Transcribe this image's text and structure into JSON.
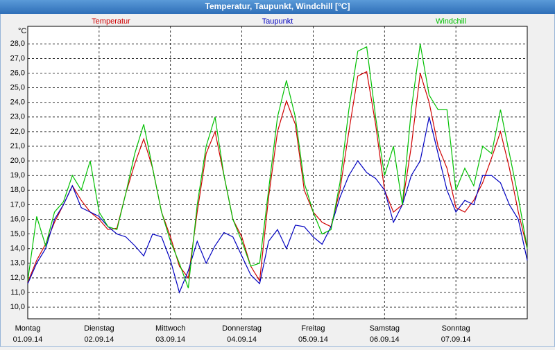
{
  "chart_data": {
    "type": "line",
    "title": "Temperatur, Taupunkt, Windchill [°C]",
    "y_unit": "°C",
    "x": [
      0,
      0.125,
      0.25,
      0.375,
      0.5,
      0.625,
      0.75,
      0.875,
      1,
      1.125,
      1.25,
      1.375,
      1.5,
      1.625,
      1.75,
      1.875,
      2,
      2.125,
      2.25,
      2.375,
      2.5,
      2.625,
      2.75,
      2.875,
      3,
      3.125,
      3.25,
      3.375,
      3.5,
      3.625,
      3.75,
      3.875,
      4,
      4.125,
      4.25,
      4.375,
      4.5,
      4.625,
      4.75,
      4.875,
      5,
      5.125,
      5.25,
      5.375,
      5.5,
      5.625,
      5.75,
      5.875,
      6,
      6.125,
      6.25,
      6.375,
      6.5,
      6.625,
      6.75,
      6.875,
      7
    ],
    "xlim": [
      0,
      7
    ],
    "xticks": [
      {
        "value": 0,
        "label": "Montag",
        "date": "01.09.14"
      },
      {
        "value": 1,
        "label": "Dienstag",
        "date": "02.09.14"
      },
      {
        "value": 2,
        "label": "Mittwoch",
        "date": "03.09.14"
      },
      {
        "value": 3,
        "label": "Donnerstag",
        "date": "04.09.14"
      },
      {
        "value": 4,
        "label": "Freitag",
        "date": "05.09.14"
      },
      {
        "value": 5,
        "label": "Samstag",
        "date": "06.09.14"
      },
      {
        "value": 6,
        "label": "Sonntag",
        "date": "07.09.14"
      }
    ],
    "ylim": [
      9.2,
      29.2
    ],
    "yticks": [
      {
        "value": 10,
        "label": "10,0"
      },
      {
        "value": 11,
        "label": "11,0"
      },
      {
        "value": 12,
        "label": "12,0"
      },
      {
        "value": 13,
        "label": "13,0"
      },
      {
        "value": 14,
        "label": "14,0"
      },
      {
        "value": 15,
        "label": "15,0"
      },
      {
        "value": 16,
        "label": "16,0"
      },
      {
        "value": 17,
        "label": "17,0"
      },
      {
        "value": 18,
        "label": "18,0"
      },
      {
        "value": 19,
        "label": "19,0"
      },
      {
        "value": 20,
        "label": "20,0"
      },
      {
        "value": 21,
        "label": "21,0"
      },
      {
        "value": 22,
        "label": "22,0"
      },
      {
        "value": 23,
        "label": "23,0"
      },
      {
        "value": 24,
        "label": "24,0"
      },
      {
        "value": 25,
        "label": "25,0"
      },
      {
        "value": 26,
        "label": "26,0"
      },
      {
        "value": 27,
        "label": "27,0"
      },
      {
        "value": 28,
        "label": "28,0"
      }
    ],
    "grid": true,
    "series": [
      {
        "name": "Temperatur",
        "color": "#d00000",
        "values": [
          11.7,
          13.2,
          14.3,
          15.8,
          17.0,
          18.3,
          17.3,
          16.5,
          16.0,
          15.3,
          15.4,
          17.8,
          19.8,
          21.5,
          19.5,
          16.5,
          14.8,
          12.8,
          12.0,
          16.5,
          20.5,
          22.0,
          19.0,
          16.0,
          14.8,
          12.8,
          11.8,
          17.5,
          22.0,
          24.1,
          22.5,
          18.0,
          16.5,
          15.8,
          15.5,
          18.0,
          22.0,
          25.8,
          26.1,
          22.5,
          18.0,
          16.5,
          17.0,
          21.0,
          26.0,
          24.0,
          21.0,
          19.5,
          16.8,
          16.5,
          17.3,
          18.5,
          20.2,
          22.0,
          19.5,
          16.5,
          14.0
        ]
      },
      {
        "name": "Taupunkt",
        "color": "#0000c0",
        "values": [
          11.6,
          13.0,
          14.0,
          16.0,
          17.0,
          18.3,
          16.8,
          16.5,
          16.2,
          15.5,
          15.0,
          14.8,
          14.2,
          13.5,
          15.0,
          14.8,
          13.2,
          11.0,
          12.5,
          14.5,
          13.0,
          14.2,
          15.1,
          14.8,
          13.5,
          12.2,
          11.6,
          14.5,
          15.3,
          14.0,
          15.6,
          15.5,
          14.8,
          14.3,
          15.5,
          17.5,
          19.0,
          20.0,
          19.2,
          18.8,
          18.0,
          15.8,
          17.0,
          19.0,
          20.0,
          23.0,
          20.5,
          18.0,
          16.5,
          17.3,
          17.0,
          19.0,
          19.0,
          18.5,
          17.0,
          16.0,
          13.2
        ]
      },
      {
        "name": "Windchill",
        "color": "#00c000",
        "values": [
          11.8,
          16.2,
          14.2,
          16.5,
          17.2,
          19.0,
          18.0,
          20.0,
          16.5,
          15.5,
          15.3,
          17.8,
          20.5,
          22.5,
          19.5,
          16.5,
          14.5,
          13.0,
          11.3,
          17.0,
          21.0,
          23.0,
          19.0,
          16.0,
          14.5,
          12.8,
          13.0,
          18.0,
          23.0,
          25.5,
          23.0,
          18.5,
          16.5,
          15.0,
          15.3,
          18.5,
          23.5,
          27.5,
          27.8,
          23.0,
          19.0,
          21.0,
          17.0,
          23.5,
          28.0,
          24.5,
          23.5,
          23.5,
          18.0,
          19.5,
          18.3,
          21.0,
          20.5,
          23.5,
          20.5,
          17.5,
          14.0
        ]
      }
    ]
  }
}
